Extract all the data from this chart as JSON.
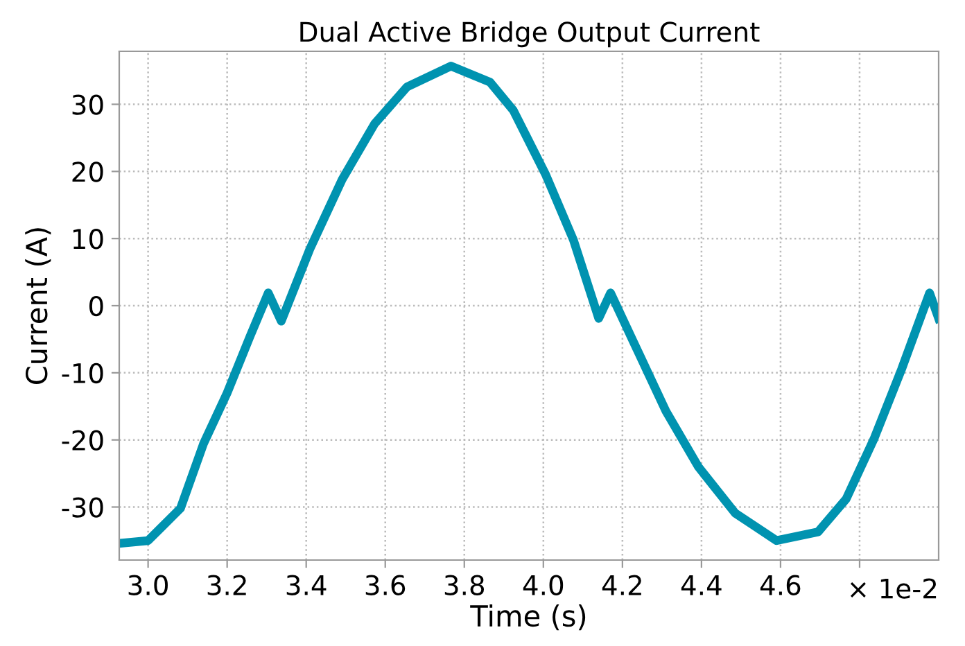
{
  "chart_data": {
    "type": "line",
    "title": "Dual Active Bridge Output Current",
    "xlabel": "Time (s)",
    "ylabel": "Current (A)",
    "annotations": [
      "× 1e-2"
    ],
    "x": [
      2.93,
      3.0,
      3.082,
      3.14,
      3.2,
      3.257,
      3.304,
      3.337,
      3.409,
      3.491,
      3.573,
      3.655,
      3.766,
      3.865,
      3.924,
      4.006,
      4.076,
      4.14,
      4.17,
      4.228,
      4.31,
      4.392,
      4.485,
      4.59,
      4.695,
      4.766,
      4.836,
      4.906,
      4.977,
      5.0
    ],
    "series": [
      {
        "color": "#0093b0",
        "values": [
          -35.4,
          -35,
          -30.2,
          -20.6,
          -13,
          -4.7,
          1.9,
          -2.3,
          8.4,
          18.8,
          27.1,
          32.6,
          35.7,
          33.3,
          29.1,
          19.5,
          9.8,
          -1.9,
          1.9,
          -5.4,
          -15.7,
          -24,
          -30.9,
          -35,
          -33.7,
          -28.8,
          -19.9,
          -9.5,
          1.9,
          -1.9
        ]
      }
    ],
    "xlim": [
      2.927,
      5.0
    ],
    "xticks": [
      {
        "value": 3,
        "label": "3.0"
      },
      3.2,
      3.4,
      3.6,
      3.8,
      {
        "value": 4,
        "label": "4.0"
      },
      4.2,
      4.4,
      4.6,
      {
        "value": 4.8,
        "label": null
      }
    ],
    "ylim": [
      -37.9,
      37.9
    ],
    "yticks": [
      -30,
      -20,
      -10,
      0,
      10,
      20,
      30
    ],
    "grid": true,
    "line_style": "solid",
    "marker": "none"
  }
}
